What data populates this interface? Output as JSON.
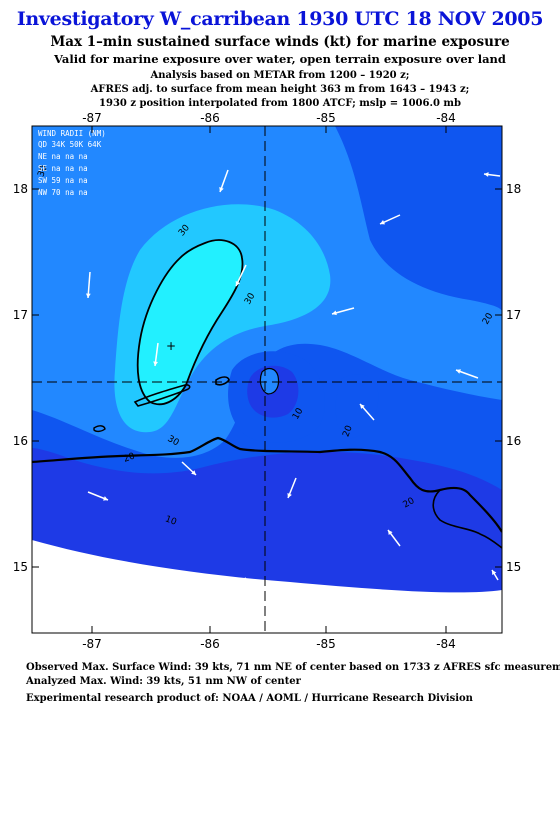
{
  "header": {
    "title": "Investigatory W_carribean 1930 UTC 18 NOV 2005",
    "subtitle1": "Max 1–min sustained surface winds (kt) for marine exposure",
    "subtitle2": "Valid for marine exposure over water, open terrain exposure over land",
    "info1": "Analysis based on  METAR from 1200 – 1920 z;",
    "info2": "AFRES adj. to surface from mean height 363 m from 1643 – 1943 z;",
    "info3": "1930 z position interpolated from 1800 ATCF; mslp = 1006.0 mb"
  },
  "map": {
    "lon_ticks": [
      "-87",
      "-86",
      "-85",
      "-84"
    ],
    "lat_ticks": [
      "18",
      "17",
      "16",
      "15"
    ],
    "contour_labels": [
      "30",
      "30",
      "30",
      "20",
      "30",
      "10",
      "20",
      "20",
      "10",
      "20"
    ],
    "colors": {
      "w0": "#ffffff",
      "w10": "#1e3ae6",
      "w20": "#0f56f0",
      "w30": "#2288ff",
      "w35": "#22c8ff",
      "w40": "#22f0ff",
      "coast": "#000000"
    }
  },
  "wind_radii": {
    "header": "WIND RADII (NM)",
    "columns": "QD  34K  50K  64K",
    "rows": [
      "NE   na    na    na",
      "SE   na    na    na",
      "SW   59    na    na",
      "NW   70    na    na"
    ]
  },
  "footer": {
    "line1": "Observed Max. Surface Wind: 39 kts, 71 nm NE of center based on 1733 z AFRES sfc measurement",
    "line2": "Analyzed Max. Wind: 39 kts, 51 nm NW of center",
    "line3": "Experimental research product of:  NOAA / AOML / Hurricane Research Division"
  }
}
